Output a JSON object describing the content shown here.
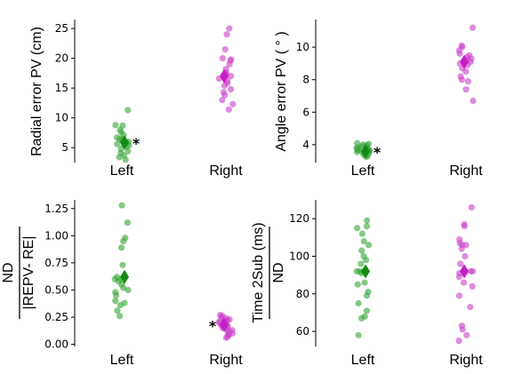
{
  "colors": {
    "left_points": "#3aa63a",
    "left_mean": "#138a13",
    "right_points": "#cc44cc",
    "right_mean": "#c41ec4"
  },
  "chart_data": [
    {
      "id": "radial",
      "type": "scatter",
      "title": "",
      "ylabel": "Radial error PV (cm)",
      "categories": [
        "Left",
        "Right"
      ],
      "ylim": [
        2.5,
        26.5
      ],
      "yticks": [
        "5",
        "10",
        "15",
        "20",
        "25"
      ],
      "ytick_values": [
        5,
        10,
        15,
        20,
        25
      ],
      "series": [
        {
          "name": "",
          "values": [
            11.3,
            8.8,
            8.7,
            8.0,
            7.6,
            7.1,
            6.7,
            6.4,
            6.2,
            6.0,
            5.8,
            5.6,
            5.4,
            5.1,
            4.8,
            4.4,
            4.1,
            3.7,
            3.4,
            3.0,
            6.5,
            5.5
          ],
          "mean": 5.9,
          "marker": "*"
        },
        {
          "name": "",
          "values": [
            25.0,
            24.0,
            21.5,
            20.0,
            19.6,
            19.0,
            18.2,
            17.6,
            17.2,
            16.6,
            16.2,
            15.8,
            15.4,
            14.8,
            14.3,
            13.8,
            13.0,
            12.3,
            11.4,
            19.8,
            17.0
          ],
          "mean": 17.0,
          "marker": ""
        }
      ]
    },
    {
      "id": "angle",
      "type": "scatter",
      "title": "",
      "ylabel": "Angle error PV ( ° )",
      "categories": [
        "Left",
        "Right"
      ],
      "ylim": [
        2.9,
        11.7
      ],
      "yticks": [
        "4",
        "6",
        "8",
        "10"
      ],
      "ytick_values": [
        4,
        6,
        8,
        10
      ],
      "series": [
        {
          "name": "",
          "values": [
            4.1,
            4.05,
            4.0,
            3.95,
            3.9,
            3.85,
            3.8,
            3.75,
            3.7,
            3.65,
            3.6,
            3.55,
            3.5,
            3.45,
            3.4,
            3.35,
            3.3,
            3.25,
            3.6,
            3.7,
            3.5,
            3.8
          ],
          "mean": 3.6,
          "marker": "*"
        },
        {
          "name": "",
          "values": [
            11.2,
            10.1,
            10.0,
            9.8,
            9.6,
            9.4,
            9.3,
            9.2,
            9.0,
            8.9,
            8.7,
            8.5,
            8.2,
            8.0,
            7.9,
            7.4,
            6.7,
            9.5,
            9.1
          ],
          "mean": 9.1,
          "marker": ""
        }
      ]
    },
    {
      "id": "nd",
      "type": "scatter",
      "title": "",
      "ylabel_numerator": "ND",
      "ylabel_denominator": "|REPV- RE|",
      "categories": [
        "Left",
        "Right"
      ],
      "ylim": [
        -0.02,
        1.33
      ],
      "yticks": [
        "0.00",
        "0.25",
        "0.50",
        "0.75",
        "1.00",
        "1.25"
      ],
      "ytick_values": [
        0,
        0.25,
        0.5,
        0.75,
        1.0,
        1.25
      ],
      "series": [
        {
          "name": "",
          "values": [
            1.28,
            1.12,
            0.98,
            0.95,
            0.89,
            0.73,
            0.62,
            0.6,
            0.58,
            0.55,
            0.5,
            0.48,
            0.45,
            0.4,
            0.38,
            0.36,
            0.31,
            0.26,
            0.6,
            0.52
          ],
          "mean": 0.62,
          "marker": ""
        },
        {
          "name": "",
          "values": [
            0.27,
            0.26,
            0.25,
            0.24,
            0.23,
            0.22,
            0.21,
            0.2,
            0.19,
            0.18,
            0.17,
            0.16,
            0.15,
            0.14,
            0.13,
            0.12,
            0.11,
            0.1,
            0.09,
            0.08,
            0.07,
            0.06,
            0.22,
            0.15
          ],
          "mean": 0.18,
          "marker": "*"
        }
      ]
    },
    {
      "id": "time",
      "type": "scatter",
      "title": "",
      "ylabel_numerator": "Time 2Sub (ms)",
      "ylabel_denominator": "ND",
      "categories": [
        "Left",
        "Right"
      ],
      "ylim": [
        52,
        130
      ],
      "yticks": [
        "60",
        "80",
        "100",
        "120"
      ],
      "ytick_values": [
        60,
        80,
        100,
        120
      ],
      "series": [
        {
          "name": "",
          "values": [
            119,
            116,
            115,
            112,
            108,
            106,
            103,
            100,
            98,
            96,
            92,
            92,
            91,
            86,
            85,
            81,
            79,
            75,
            71,
            68,
            67,
            58,
            92
          ],
          "mean": 92,
          "marker": ""
        },
        {
          "name": "",
          "values": [
            126,
            117,
            116,
            109,
            107,
            106,
            106,
            104,
            100,
            96,
            92,
            92,
            91,
            89,
            86,
            84,
            79,
            73,
            63,
            61,
            58,
            55,
            92
          ],
          "mean": 92,
          "marker": ""
        }
      ]
    }
  ]
}
